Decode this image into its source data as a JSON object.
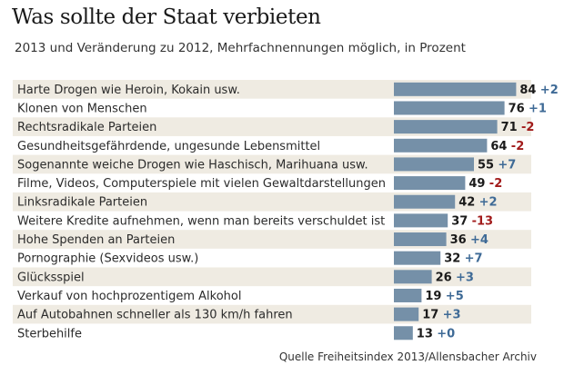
{
  "chart_data": {
    "type": "bar",
    "orientation": "horizontal",
    "title": "Was sollte der Staat verbieten",
    "subtitle": "2013 und Veränderung zu 2012, Mehrfachnennungen möglich, in Prozent",
    "source": "Quelle Freiheitsindex 2013/Allensbacher Archiv",
    "xlabel": "",
    "ylabel": "",
    "xlim": [
      0,
      100
    ],
    "grid": false,
    "colors": {
      "bar": "#7590A8",
      "row_alt": "#EFEBE2",
      "positive": "#3E6A96",
      "negative": "#A11A1A"
    },
    "categories": [
      "Harte Drogen wie Heroin, Kokain usw.",
      "Klonen von Menschen",
      "Rechtsradikale Parteien",
      "Gesundheitsgefährdende, ungesunde Lebensmittel",
      "Sogenannte weiche Drogen wie Haschisch, Marihuana usw.",
      "Filme, Videos, Computerspiele mit vielen Gewaltdarstellungen",
      "Linksradikale Parteien",
      "Weitere Kredite aufnehmen, wenn man bereits verschuldet ist",
      "Hohe Spenden an Parteien",
      "Pornographie (Sexvideos usw.)",
      "Glücksspiel",
      "Verkauf von hochprozentigem Alkohol",
      "Auf Autobahnen schneller als 130 km/h fahren",
      "Sterbehilfe"
    ],
    "series": [
      {
        "name": "2013",
        "values": [
          84,
          76,
          71,
          64,
          55,
          49,
          42,
          37,
          36,
          32,
          26,
          19,
          17,
          13
        ]
      },
      {
        "name": "Veränderung zu 2012",
        "values": [
          "+2",
          "+1",
          "-2",
          "-2",
          "+7",
          "-2",
          "+2",
          "-13",
          "+4",
          "+7",
          "+3",
          "+5",
          "+3",
          "+0"
        ]
      }
    ]
  }
}
